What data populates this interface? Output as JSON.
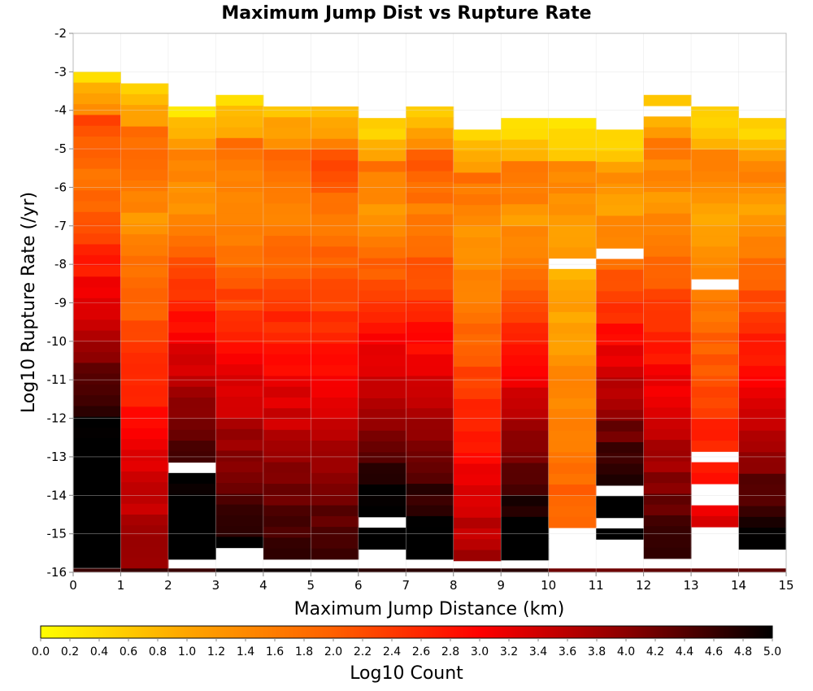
{
  "chart_data": {
    "type": "heatmap",
    "title": "Maximum Jump Dist vs Rupture Rate",
    "xlabel": "Maximum Jump Distance (km)",
    "ylabel": "Log10 Rupture Rate (/yr)",
    "xlim": [
      0,
      15
    ],
    "ylim": [
      -16,
      -2
    ],
    "x_ticks": [
      "0",
      "1",
      "2",
      "3",
      "4",
      "5",
      "6",
      "7",
      "8",
      "9",
      "10",
      "11",
      "12",
      "13",
      "14",
      "15"
    ],
    "y_ticks": [
      "-2",
      "-3",
      "-4",
      "-5",
      "-6",
      "-7",
      "-8",
      "-9",
      "-10",
      "-11",
      "-12",
      "-13",
      "-14",
      "-15",
      "-16"
    ],
    "x_bin_width": 1,
    "y_bin_height": 0.28,
    "grid": true,
    "colorbar": {
      "label": "Log10 Count",
      "range": [
        0.0,
        5.0
      ],
      "ticks": [
        "0.0",
        "0.2",
        "0.4",
        "0.6",
        "0.8",
        "1.0",
        "1.2",
        "1.4",
        "1.6",
        "1.8",
        "2.0",
        "2.2",
        "2.4",
        "2.6",
        "2.8",
        "3.0",
        "3.2",
        "3.4",
        "3.6",
        "3.8",
        "4.0",
        "4.2",
        "4.4",
        "4.6",
        "4.8",
        "5.0"
      ],
      "colors": [
        "#ffff00",
        "#ffa500",
        "#ff6000",
        "#ff0000",
        "#8b0000",
        "#000000"
      ]
    },
    "columns": [
      {
        "x": 0.5,
        "y_top": -3.0,
        "y_bottom": -15.9,
        "peak_y": -5.8,
        "peak": 1.6,
        "floor": 0.4
      },
      {
        "x": 1.5,
        "y_top": -3.3,
        "y_bottom": -15.9,
        "peak_y": -6.8,
        "peak": 1.3,
        "floor": 0.4
      },
      {
        "x": 2.5,
        "y_top": -3.9,
        "y_bottom": -15.9,
        "peak_y": -6.2,
        "peak": 1.2,
        "floor": 0.3
      },
      {
        "x": 3.5,
        "y_top": -3.6,
        "y_bottom": -15.9,
        "peak_y": -6.5,
        "peak": 1.3,
        "floor": 0.3
      },
      {
        "x": 4.5,
        "y_top": -3.9,
        "y_bottom": -15.9,
        "peak_y": -6.6,
        "peak": 1.5,
        "floor": 0.7
      },
      {
        "x": 5.5,
        "y_top": -3.9,
        "y_bottom": -15.9,
        "peak_y": -6.9,
        "peak": 1.6,
        "floor": 0.7
      },
      {
        "x": 6.5,
        "y_top": -4.2,
        "y_bottom": -15.9,
        "peak_y": -6.5,
        "peak": 1.2,
        "floor": 0.3
      },
      {
        "x": 7.5,
        "y_top": -3.9,
        "y_bottom": -15.9,
        "peak_y": -6.7,
        "peak": 1.5,
        "floor": 0.5
      },
      {
        "x": 8.5,
        "y_top": -4.5,
        "y_bottom": -15.9,
        "peak_y": -7.5,
        "peak": 1.2,
        "floor": 0.4
      },
      {
        "x": 9.5,
        "y_top": -4.2,
        "y_bottom": -15.9,
        "peak_y": -6.8,
        "peak": 1.2,
        "floor": 0.2
      },
      {
        "x": 10.5,
        "y_top": -4.2,
        "y_bottom": -15.0,
        "peak_y": -8.5,
        "peak": 0.9,
        "floor": 0.2
      },
      {
        "x": 11.5,
        "y_top": -4.5,
        "y_bottom": -15.3,
        "peak_y": -6.5,
        "peak": 1.1,
        "floor": 0.3
      },
      {
        "x": 12.5,
        "y_top": -3.6,
        "y_bottom": -15.9,
        "peak_y": -6.2,
        "peak": 1.2,
        "floor": 0.4
      },
      {
        "x": 13.5,
        "y_top": -3.9,
        "y_bottom": -15.0,
        "peak_y": -6.8,
        "peak": 1.0,
        "floor": 0.3
      },
      {
        "x": 14.5,
        "y_top": -4.2,
        "y_bottom": -15.6,
        "peak_y": -6.5,
        "peak": 1.1,
        "floor": 0.3
      }
    ],
    "holes": [
      {
        "x": 2.5,
        "y": -13.3
      },
      {
        "x": 3.5,
        "y": -15.4
      },
      {
        "x": 6.5,
        "y": -14.8
      },
      {
        "x": 6.5,
        "y": -15.4
      },
      {
        "x": 10.5,
        "y": -8.1
      },
      {
        "x": 11.5,
        "y": -7.8
      },
      {
        "x": 11.5,
        "y": -13.8
      },
      {
        "x": 11.5,
        "y": -14.8
      },
      {
        "x": 12.5,
        "y": -3.9
      },
      {
        "x": 13.5,
        "y": -8.4
      },
      {
        "x": 13.5,
        "y": -13.0
      },
      {
        "x": 13.5,
        "y": -13.8
      },
      {
        "x": 13.5,
        "y": -14.1
      }
    ],
    "bottom_row": {
      "y": -15.9,
      "segments": [
        {
          "x0": 0,
          "x1": 3,
          "value": 4.6
        },
        {
          "x0": 3,
          "x1": 6,
          "value": 4.9
        },
        {
          "x0": 6,
          "x1": 10,
          "value": 4.7
        },
        {
          "x0": 10,
          "x1": 12,
          "value": 4.2
        },
        {
          "x0": 12,
          "x1": 15,
          "value": 4.3
        }
      ]
    }
  }
}
